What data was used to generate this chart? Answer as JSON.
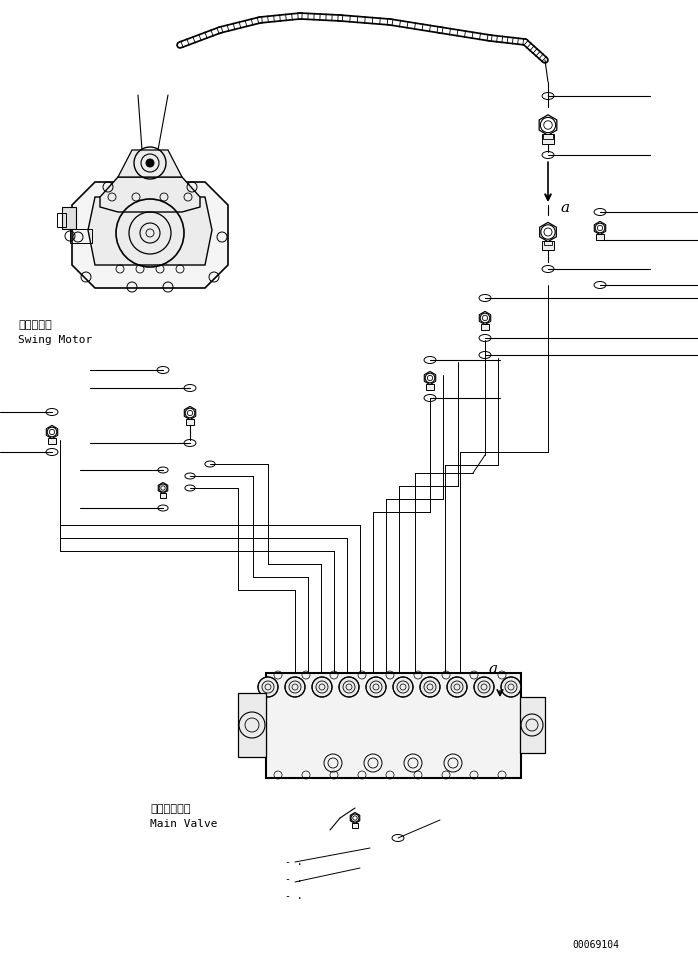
{
  "title": "",
  "background_color": "#ffffff",
  "line_color": "#000000",
  "fig_width": 6.98,
  "fig_height": 9.6,
  "dpi": 100,
  "part_number": "00069104",
  "swing_motor_label_jp": "旋回モータ",
  "swing_motor_label_en": "Swing Motor",
  "main_valve_label_jp": "メインバルブ",
  "main_valve_label_en": "Main Valve",
  "label_a1": "a",
  "label_a2": "a"
}
